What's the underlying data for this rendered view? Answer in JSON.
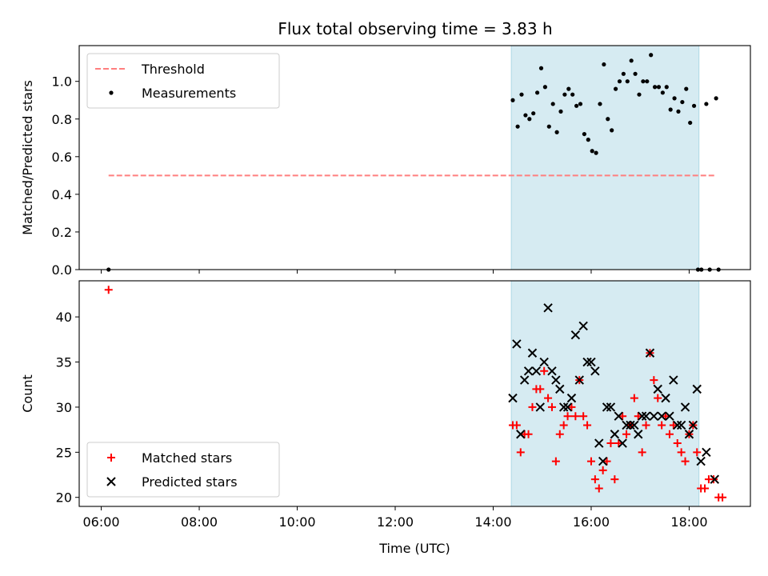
{
  "title": "Flux total observing time = 3.83 h",
  "colors": {
    "band": "#add8e6",
    "threshold": "#ff7f7f",
    "measurements": "#000000",
    "matched": "#ff0000",
    "predicted": "#000000"
  },
  "chart_data": [
    {
      "type": "scatter",
      "ylabel": "Matched/Predicted stars",
      "xlim": [
        5.55,
        19.25
      ],
      "ylim": [
        0.0,
        1.19
      ],
      "yticks": [
        0.0,
        0.2,
        0.4,
        0.6,
        0.8,
        1.0
      ],
      "ytick_labels": [
        "0.0",
        "0.2",
        "0.4",
        "0.6",
        "0.8",
        "1.0"
      ],
      "shaded_interval": [
        14.37,
        18.2
      ],
      "legend": {
        "position": "top-left",
        "entries": [
          "Threshold",
          "Measurements"
        ]
      },
      "threshold": {
        "name": "Threshold",
        "value": 0.5,
        "x_range": [
          6.15,
          18.55
        ]
      },
      "series": [
        {
          "name": "Measurements",
          "x": [
            6.15,
            14.4,
            14.5,
            14.58,
            14.66,
            14.74,
            14.82,
            14.9,
            14.98,
            15.06,
            15.14,
            15.22,
            15.3,
            15.38,
            15.46,
            15.54,
            15.62,
            15.7,
            15.78,
            15.86,
            15.94,
            16.02,
            16.1,
            16.18,
            16.26,
            16.34,
            16.42,
            16.5,
            16.58,
            16.66,
            16.74,
            16.82,
            16.9,
            16.98,
            17.06,
            17.14,
            17.22,
            17.3,
            17.38,
            17.46,
            17.54,
            17.62,
            17.7,
            17.78,
            17.86,
            17.94,
            18.02,
            18.1,
            18.18,
            18.35,
            18.55,
            18.25,
            18.42,
            18.6
          ],
          "y": [
            0.0,
            0.9,
            0.76,
            0.93,
            0.82,
            0.8,
            0.83,
            0.94,
            1.07,
            0.97,
            0.76,
            0.88,
            0.73,
            0.84,
            0.93,
            0.96,
            0.93,
            0.87,
            0.88,
            0.72,
            0.69,
            0.63,
            0.62,
            0.88,
            1.09,
            0.8,
            0.74,
            0.96,
            1.0,
            1.04,
            1.0,
            1.11,
            1.04,
            0.93,
            1.0,
            1.0,
            1.14,
            0.97,
            0.97,
            0.94,
            0.97,
            0.85,
            0.91,
            0.84,
            0.89,
            0.96,
            0.78,
            0.87,
            0.0,
            0.88,
            0.91,
            0.0,
            0.0,
            0.0
          ]
        }
      ]
    },
    {
      "type": "scatter",
      "xlabel": "Time (UTC)",
      "ylabel": "Count",
      "xlim": [
        5.55,
        19.25
      ],
      "ylim": [
        19.0,
        44.0
      ],
      "xticks": [
        6,
        8,
        10,
        12,
        14,
        16,
        18
      ],
      "xtick_labels": [
        "06:00",
        "08:00",
        "10:00",
        "12:00",
        "14:00",
        "16:00",
        "18:00"
      ],
      "yticks": [
        20,
        25,
        30,
        35,
        40
      ],
      "ytick_labels": [
        "20",
        "25",
        "30",
        "35",
        "40"
      ],
      "shaded_interval": [
        14.37,
        18.2
      ],
      "legend": {
        "position": "bottom-left",
        "entries": [
          "Matched stars",
          "Predicted stars"
        ]
      },
      "series": [
        {
          "name": "Matched stars",
          "x": [
            6.15,
            14.4,
            14.48,
            14.56,
            14.64,
            14.72,
            14.8,
            14.88,
            14.96,
            15.04,
            15.12,
            15.2,
            15.28,
            15.36,
            15.44,
            15.52,
            15.6,
            15.68,
            15.76,
            15.84,
            15.92,
            16.0,
            16.08,
            16.16,
            16.24,
            16.32,
            16.4,
            16.48,
            16.56,
            16.64,
            16.72,
            16.8,
            16.88,
            16.96,
            17.04,
            17.12,
            17.2,
            17.28,
            17.36,
            17.44,
            17.52,
            17.6,
            17.68,
            17.76,
            17.84,
            17.92,
            18.0,
            18.08,
            18.16,
            18.24,
            18.32,
            18.4,
            18.5,
            18.6,
            18.68
          ],
          "y": [
            43,
            28,
            28,
            25,
            27,
            27,
            30,
            32,
            32,
            34,
            31,
            30,
            24,
            27,
            28,
            29,
            30,
            29,
            33,
            29,
            28,
            24,
            22,
            21,
            23,
            24,
            26,
            22,
            26,
            29,
            27,
            28,
            31,
            29,
            25,
            28,
            36,
            33,
            31,
            28,
            29,
            27,
            28,
            26,
            25,
            24,
            27,
            28,
            25,
            21,
            21,
            22,
            22,
            20,
            20
          ]
        },
        {
          "name": "Predicted stars",
          "x": [
            14.4,
            14.48,
            14.56,
            14.64,
            14.72,
            14.8,
            14.88,
            14.96,
            15.04,
            15.12,
            15.2,
            15.28,
            15.36,
            15.44,
            15.52,
            15.6,
            15.68,
            15.76,
            15.84,
            15.92,
            16.0,
            16.08,
            16.16,
            16.24,
            16.32,
            16.4,
            16.48,
            16.56,
            16.64,
            16.72,
            16.8,
            16.88,
            16.96,
            17.04,
            17.12,
            17.2,
            17.28,
            17.36,
            17.44,
            17.52,
            17.6,
            17.68,
            17.76,
            17.84,
            17.92,
            18.0,
            18.08,
            18.16,
            18.24,
            18.35,
            18.52
          ],
          "y": [
            31,
            37,
            27,
            33,
            34,
            36,
            34,
            30,
            35,
            41,
            34,
            33,
            32,
            30,
            30,
            31,
            38,
            33,
            39,
            35,
            35,
            34,
            26,
            24,
            30,
            30,
            27,
            29,
            26,
            28,
            28,
            28,
            27,
            29,
            29,
            36,
            29,
            32,
            29,
            31,
            29,
            33,
            28,
            28,
            30,
            27,
            28,
            32,
            24,
            25,
            22
          ]
        }
      ]
    }
  ]
}
